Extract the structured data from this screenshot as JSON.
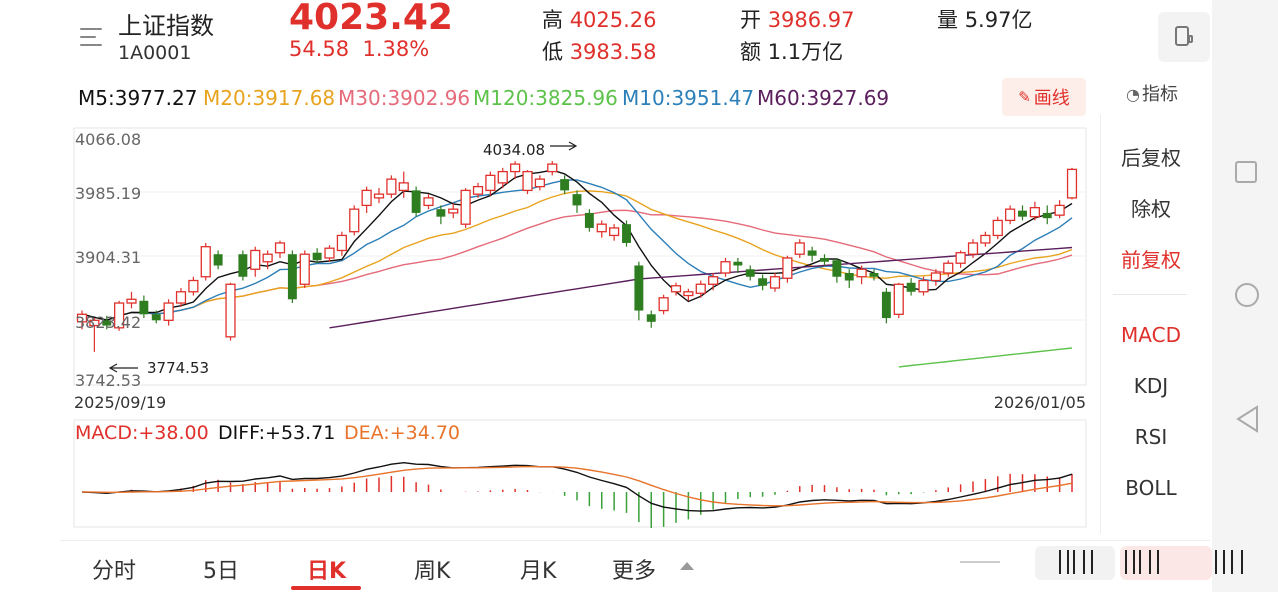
{
  "header": {
    "title": "上证指数",
    "code": "1A0001",
    "price": "4023.42",
    "change": "54.58",
    "change_pct": "1.38%",
    "high_label": "高",
    "high": "4025.26",
    "low_label": "低",
    "low": "3983.58",
    "open_label": "开",
    "open": "3986.97",
    "amount_label": "额",
    "amount": "1.1万亿",
    "volume_label": "量",
    "volume": "5.97亿"
  },
  "ma_row": {
    "items": [
      {
        "label": "M5:3977.27",
        "color": "#111111"
      },
      {
        "label": "M20:3917.68",
        "color": "#e8a31e"
      },
      {
        "label": "M30:3902.96",
        "color": "#e56a7a"
      },
      {
        "label": "M120:3825.96",
        "color": "#5cc24a"
      },
      {
        "label": "M10:3951.47",
        "color": "#2c7fb8"
      },
      {
        "label": "M60:3927.69",
        "color": "#5a1f5c"
      }
    ],
    "draw_button": "画线"
  },
  "side_panel": {
    "header": "指标",
    "rights": [
      {
        "label": "后复权",
        "active": false
      },
      {
        "label": "除权",
        "active": false
      },
      {
        "label": "前复权",
        "active": true
      }
    ],
    "indicators": [
      {
        "label": "MACD",
        "active": true
      },
      {
        "label": "KDJ",
        "active": false
      },
      {
        "label": "RSI",
        "active": false
      },
      {
        "label": "BOLL",
        "active": false
      }
    ]
  },
  "chart_data": {
    "type": "candlestick",
    "y_ticks": [
      "4066.08",
      "3985.19",
      "3904.31",
      "3823.42",
      "3742.53"
    ],
    "ylim": [
      3742.53,
      4066.08
    ],
    "x_start": "2025/09/19",
    "x_end": "2026/01/05",
    "max_marker": "4034.08",
    "min_marker": "3774.53",
    "candles": [
      [
        3820,
        3830,
        3810,
        3835
      ],
      [
        3815,
        3822,
        3780,
        3825
      ],
      [
        3822,
        3815,
        3810,
        3828
      ],
      [
        3812,
        3845,
        3808,
        3848
      ],
      [
        3845,
        3850,
        3838,
        3860
      ],
      [
        3848,
        3830,
        3825,
        3855
      ],
      [
        3830,
        3822,
        3818,
        3835
      ],
      [
        3822,
        3845,
        3815,
        3850
      ],
      [
        3845,
        3860,
        3840,
        3865
      ],
      [
        3860,
        3875,
        3855,
        3880
      ],
      [
        3880,
        3920,
        3875,
        3925
      ],
      [
        3910,
        3895,
        3890,
        3915
      ],
      [
        3800,
        3870,
        3795,
        3872
      ],
      [
        3910,
        3880,
        3875,
        3915
      ],
      [
        3890,
        3915,
        3880,
        3920
      ],
      [
        3900,
        3910,
        3890,
        3915
      ],
      [
        3912,
        3925,
        3905,
        3928
      ],
      [
        3910,
        3850,
        3845,
        3915
      ],
      [
        3870,
        3910,
        3865,
        3915
      ],
      [
        3912,
        3902,
        3898,
        3918
      ],
      [
        3905,
        3918,
        3900,
        3922
      ],
      [
        3915,
        3935,
        3908,
        3940
      ],
      [
        3940,
        3970,
        3935,
        3975
      ],
      [
        3975,
        3995,
        3965,
        4000
      ],
      [
        3985,
        3990,
        3978,
        3998
      ],
      [
        3990,
        4010,
        3985,
        4015
      ],
      [
        3995,
        4005,
        3985,
        4020
      ],
      [
        3995,
        3965,
        3960,
        4000
      ],
      [
        3975,
        3985,
        3970,
        3990
      ],
      [
        3970,
        3960,
        3950,
        3975
      ],
      [
        3965,
        3970,
        3958,
        3978
      ],
      [
        3950,
        3995,
        3945,
        3998
      ],
      [
        3990,
        4000,
        3985,
        4005
      ],
      [
        3995,
        4015,
        3988,
        4020
      ],
      [
        4005,
        4020,
        3998,
        4025
      ],
      [
        4020,
        4030,
        4010,
        4034
      ],
      [
        3995,
        4020,
        3990,
        4022
      ],
      [
        4000,
        4010,
        3995,
        4015
      ],
      [
        4020,
        4030,
        4015,
        4034
      ],
      [
        4010,
        3995,
        3990,
        4015
      ],
      [
        3990,
        3975,
        3965,
        3995
      ],
      [
        3965,
        3945,
        3940,
        3970
      ],
      [
        3940,
        3950,
        3932,
        3955
      ],
      [
        3935,
        3945,
        3928,
        3950
      ],
      [
        3950,
        3925,
        3920,
        3955
      ],
      [
        3895,
        3835,
        3822,
        3900
      ],
      [
        3830,
        3820,
        3812,
        3835
      ],
      [
        3835,
        3852,
        3830,
        3856
      ],
      [
        3860,
        3868,
        3855,
        3872
      ],
      [
        3855,
        3860,
        3848,
        3864
      ],
      [
        3858,
        3870,
        3852,
        3875
      ],
      [
        3870,
        3880,
        3862,
        3885
      ],
      [
        3885,
        3900,
        3880,
        3905
      ],
      [
        3900,
        3895,
        3885,
        3905
      ],
      [
        3890,
        3880,
        3875,
        3895
      ],
      [
        3878,
        3868,
        3862,
        3883
      ],
      [
        3865,
        3880,
        3860,
        3885
      ],
      [
        3878,
        3905,
        3872,
        3908
      ],
      [
        3910,
        3925,
        3905,
        3930
      ],
      [
        3915,
        3908,
        3900,
        3920
      ],
      [
        3905,
        3900,
        3895,
        3910
      ],
      [
        3902,
        3880,
        3872,
        3905
      ],
      [
        3885,
        3875,
        3865,
        3890
      ],
      [
        3880,
        3890,
        3870,
        3895
      ],
      [
        3885,
        3880,
        3875,
        3890
      ],
      [
        3860,
        3825,
        3818,
        3865
      ],
      [
        3830,
        3870,
        3825,
        3872
      ],
      [
        3872,
        3860,
        3855,
        3878
      ],
      [
        3860,
        3875,
        3855,
        3880
      ],
      [
        3875,
        3885,
        3868,
        3890
      ],
      [
        3885,
        3898,
        3880,
        3902
      ],
      [
        3898,
        3912,
        3892,
        3915
      ],
      [
        3910,
        3925,
        3905,
        3930
      ],
      [
        3925,
        3935,
        3920,
        3940
      ],
      [
        3935,
        3955,
        3930,
        3960
      ],
      [
        3955,
        3970,
        3950,
        3975
      ],
      [
        3968,
        3960,
        3955,
        3975
      ],
      [
        3960,
        3972,
        3955,
        3980
      ],
      [
        3965,
        3958,
        3950,
        3975
      ],
      [
        3962,
        3975,
        3958,
        3982
      ],
      [
        3985,
        4023,
        3983,
        4025
      ]
    ],
    "macd": {
      "label": "MACD:+38.00",
      "diff_label": "DIFF:+53.71",
      "dea_label": "DEA:+34.70",
      "label_color": "#e0302b",
      "diff_color": "#111111",
      "dea_color": "#e8732a"
    }
  },
  "tabs": {
    "items": [
      {
        "label": "分时",
        "active": false
      },
      {
        "label": "5日",
        "active": false
      },
      {
        "label": "日K",
        "active": true
      },
      {
        "label": "周K",
        "active": false
      },
      {
        "label": "月K",
        "active": false
      },
      {
        "label": "更多",
        "active": false
      }
    ]
  },
  "colors": {
    "up": "#e0302b",
    "down": "#2e7d20",
    "accent": "#e0302b"
  }
}
